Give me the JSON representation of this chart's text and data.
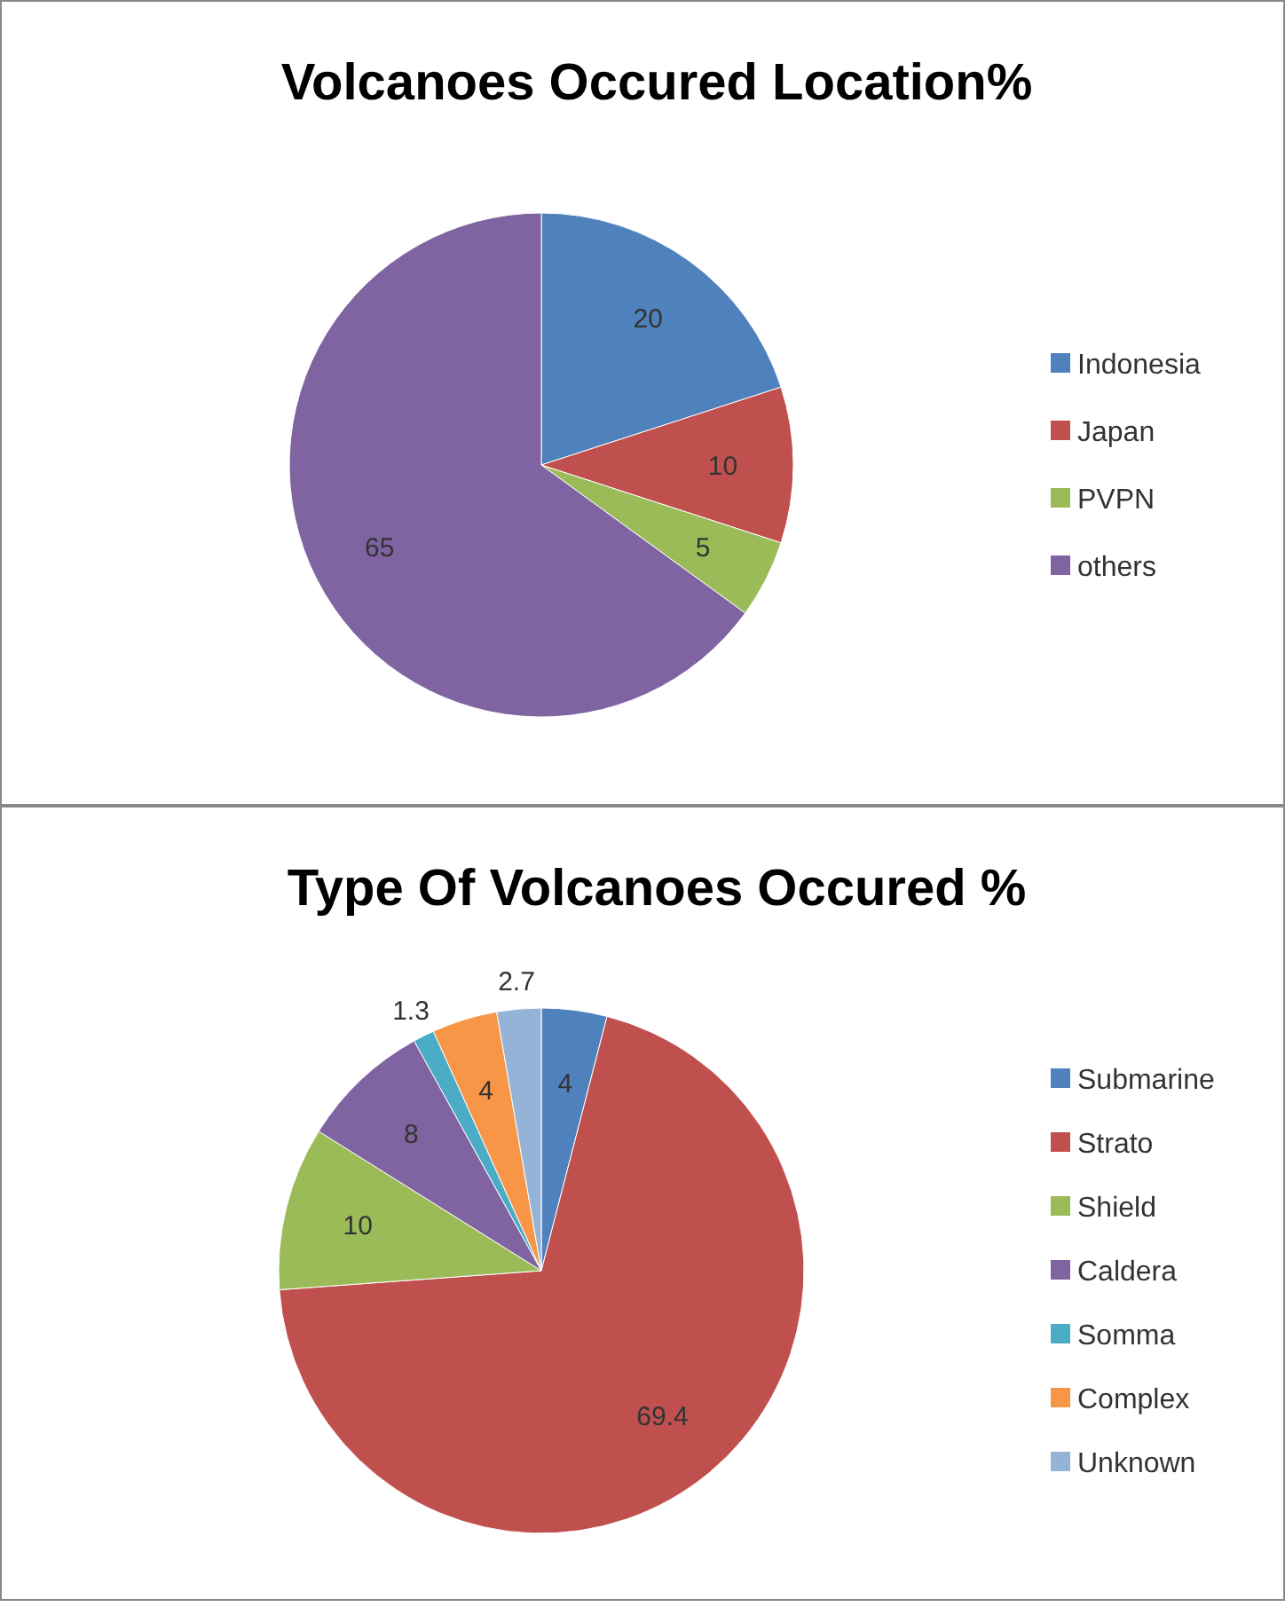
{
  "chart_data": [
    {
      "type": "pie",
      "title": "Volcanoes Occured Location%",
      "categories": [
        "Indonesia",
        "Japan",
        "PVPN",
        "others"
      ],
      "values": [
        20,
        10,
        5,
        65
      ],
      "colors": [
        "#4f81bd",
        "#c0504d",
        "#9bbb59",
        "#8064a2"
      ],
      "data_labels": true,
      "legend": "right"
    },
    {
      "type": "pie",
      "title": "Type Of Volcanoes Occured %",
      "categories": [
        "Submarine",
        "Strato",
        "Shield",
        "Caldera",
        "Somma",
        "Complex",
        "Unknown"
      ],
      "values": [
        4,
        69.4,
        10,
        8,
        1.3,
        4,
        2.7
      ],
      "colors": [
        "#4f81bd",
        "#c0504d",
        "#9bbb59",
        "#8064a2",
        "#4bacc6",
        "#f79646",
        "#95b3d7"
      ],
      "data_labels": true,
      "legend": "right"
    }
  ]
}
